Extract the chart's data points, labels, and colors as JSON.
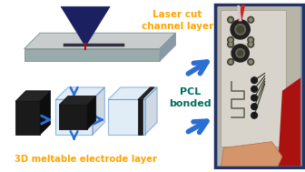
{
  "background_color": "#ffffff",
  "text_laser": "Laser cut\nchannel layer",
  "text_electrode": "3D meltable electrode layer",
  "text_pcl": "PCL\nbonded",
  "text_color_orange": "#FFA500",
  "text_color_teal": "#007060",
  "arrow_color": "#2B6FD4",
  "fig_width": 3.36,
  "fig_height": 1.89,
  "dpi": 100,
  "slab_color_top": "#C8CCCC",
  "slab_color_front": "#9AABAB",
  "slab_color_right": "#8899AA",
  "box_face": "#C8DDF0",
  "box_edge": "#4488CC",
  "black_block": "#1a1a1a",
  "photo_border": "#223366"
}
